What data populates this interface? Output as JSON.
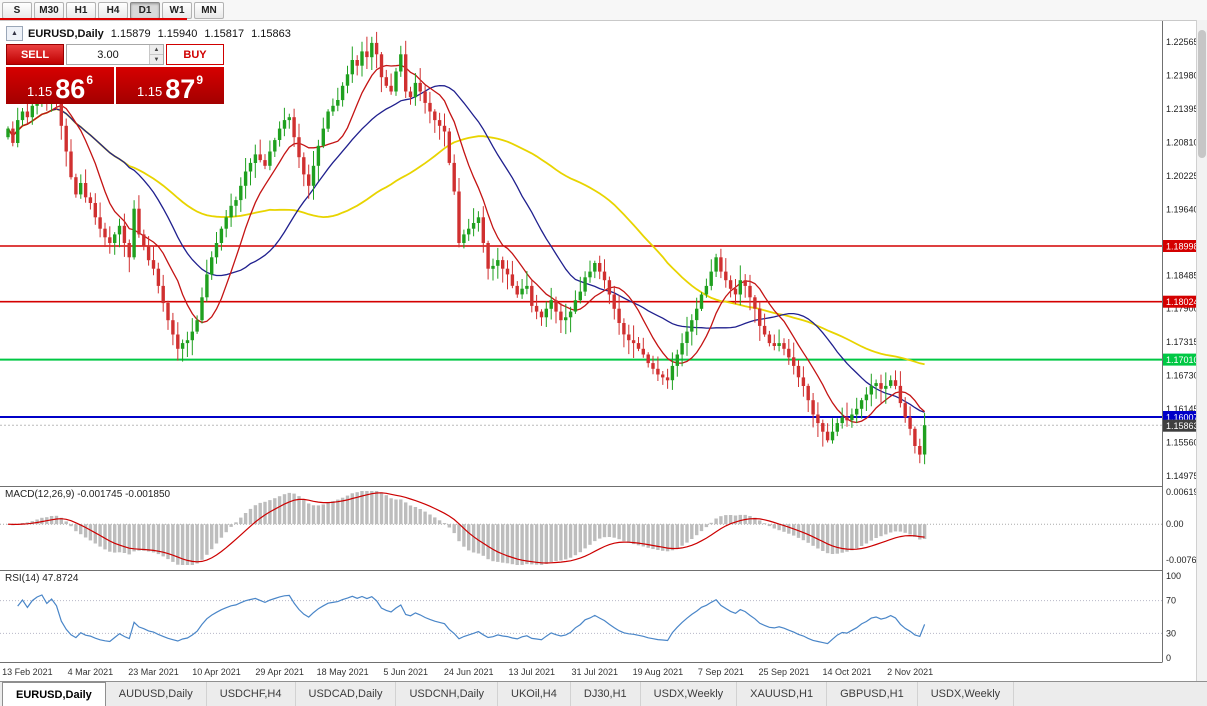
{
  "toolbar": {
    "timeframes": [
      {
        "label": "S",
        "active": false
      },
      {
        "label": "M30",
        "active": false
      },
      {
        "label": "H1",
        "active": false
      },
      {
        "label": "H4",
        "active": false
      },
      {
        "label": "D1",
        "active": true
      },
      {
        "label": "W1",
        "active": false
      },
      {
        "label": "MN",
        "active": false
      }
    ]
  },
  "chart_header": {
    "collapse_icon": "▲",
    "symbol": "EURUSD,Daily",
    "open": "1.15879",
    "high": "1.15940",
    "low": "1.15817",
    "close": "1.15863"
  },
  "trade_panel": {
    "sell_label": "SELL",
    "buy_label": "BUY",
    "volume": "3.00",
    "spin_up": "▲",
    "spin_down": "▼",
    "sell_price": {
      "base": "1.15",
      "pips": "86",
      "pt": "6"
    },
    "buy_price": {
      "base": "1.15",
      "pips": "87",
      "pt": "9"
    }
  },
  "indicators": {
    "macd_label": "MACD(12,26,9) -0.001745 -0.001850",
    "rsi_label": "RSI(14) 47.8724"
  },
  "price_axis": {
    "ticks": [
      "1.22565",
      "1.21980",
      "1.21395",
      "1.20810",
      "1.20225",
      "1.19640",
      "1.18485",
      "1.17900",
      "1.17315",
      "1.16730",
      "1.16145",
      "1.15560",
      "1.14975"
    ]
  },
  "macd_axis": [
    "0.006193",
    "0.00",
    "-0.007621"
  ],
  "rsi_axis": [
    "100",
    "70",
    "30",
    "0"
  ],
  "date_axis": [
    "13 Feb 2021",
    "4 Mar 2021",
    "23 Mar 2021",
    "10 Apr 2021",
    "29 Apr 2021",
    "18 May 2021",
    "5 Jun 2021",
    "24 Jun 2021",
    "13 Jul 2021",
    "31 Jul 2021",
    "19 Aug 2021",
    "7 Sep 2021",
    "25 Sep 2021",
    "14 Oct 2021",
    "2 Nov 2021"
  ],
  "tabs": [
    {
      "label": "EURUSD,Daily",
      "active": true
    },
    {
      "label": "AUDUSD,Daily",
      "active": false
    },
    {
      "label": "USDCHF,H4",
      "active": false
    },
    {
      "label": "USDCAD,Daily",
      "active": false
    },
    {
      "label": "USDCNH,Daily",
      "active": false
    },
    {
      "label": "UKOil,H4",
      "active": false
    },
    {
      "label": "DJ30,H1",
      "active": false
    },
    {
      "label": "USDX,Weekly",
      "active": false
    },
    {
      "label": "XAUUSD,H1",
      "active": false
    },
    {
      "label": "GBPUSD,H1",
      "active": false
    },
    {
      "label": "USDX,Weekly",
      "active": false
    }
  ],
  "chart_data": {
    "type": "candlestick",
    "symbol": "EURUSD",
    "timeframe": "Daily",
    "title": "EURUSD,Daily",
    "price_range": {
      "max": 1.2295,
      "min": 1.148
    },
    "closes": [
      1.2105,
      1.208,
      1.212,
      1.2135,
      1.2125,
      1.2145,
      1.216,
      1.217,
      1.2155,
      1.2175,
      1.216,
      1.211,
      1.2065,
      1.202,
      1.199,
      1.201,
      1.1985,
      1.1975,
      1.195,
      1.193,
      1.1915,
      1.1905,
      1.192,
      1.1935,
      1.1905,
      1.188,
      1.1965,
      1.192,
      1.19,
      1.1875,
      1.186,
      1.183,
      1.18,
      1.177,
      1.1745,
      1.172,
      1.173,
      1.1735,
      1.175,
      1.177,
      1.181,
      1.185,
      1.188,
      1.1905,
      1.193,
      1.195,
      1.197,
      1.198,
      1.2005,
      1.203,
      1.2045,
      1.206,
      1.205,
      1.204,
      1.2065,
      1.2085,
      1.2105,
      1.212,
      1.2125,
      1.209,
      1.2055,
      1.2025,
      1.2005,
      1.204,
      1.2075,
      1.2105,
      1.2135,
      1.2145,
      1.2155,
      1.218,
      1.22,
      1.2225,
      1.2215,
      1.224,
      1.223,
      1.2255,
      1.2235,
      1.2195,
      1.218,
      1.217,
      1.2205,
      1.2235,
      1.217,
      1.216,
      1.2185,
      1.217,
      1.215,
      1.2135,
      1.212,
      1.211,
      1.21,
      1.2045,
      1.1995,
      1.1905,
      1.192,
      1.193,
      1.194,
      1.195,
      1.1905,
      1.186,
      1.1865,
      1.1875,
      1.186,
      1.185,
      1.183,
      1.1815,
      1.1825,
      1.183,
      1.1795,
      1.1785,
      1.1775,
      1.179,
      1.1805,
      1.1785,
      1.177,
      1.1775,
      1.1785,
      1.1805,
      1.182,
      1.1845,
      1.1855,
      1.187,
      1.1855,
      1.184,
      1.1815,
      1.179,
      1.1765,
      1.1745,
      1.1735,
      1.173,
      1.172,
      1.171,
      1.1695,
      1.1685,
      1.1675,
      1.167,
      1.1665,
      1.169,
      1.171,
      1.173,
      1.175,
      1.177,
      1.179,
      1.1815,
      1.183,
      1.1855,
      1.188,
      1.1855,
      1.184,
      1.1825,
      1.1815,
      1.184,
      1.183,
      1.181,
      1.179,
      1.176,
      1.1745,
      1.173,
      1.1725,
      1.173,
      1.172,
      1.1705,
      1.169,
      1.167,
      1.1655,
      1.163,
      1.1605,
      1.159,
      1.1575,
      1.156,
      1.1575,
      1.159,
      1.16,
      1.1595,
      1.1605,
      1.1615,
      1.163,
      1.164,
      1.1655,
      1.166,
      1.165,
      1.1655,
      1.1665,
      1.1655,
      1.1625,
      1.16,
      1.158,
      1.155,
      1.1535,
      1.15863
    ],
    "date_label_indices": [
      4,
      17,
      30,
      43,
      56,
      69,
      82,
      95,
      108,
      121,
      134,
      147,
      160,
      173,
      186
    ],
    "levels": [
      {
        "price": 1.18998,
        "label": "1.18998",
        "color": "#d40000"
      },
      {
        "price": 1.18024,
        "label": "1.18024",
        "color": "#d40000"
      },
      {
        "price": 1.1701,
        "label": "1.17010",
        "color": "#00c844"
      },
      {
        "price": 1.16007,
        "label": "1.16007",
        "color": "#0000c8"
      }
    ],
    "current_price": {
      "price": 1.15863,
      "label": "1.15863",
      "badge_color": "#3f3f3f"
    },
    "moving_averages": [
      {
        "period": 10,
        "color": "#c41414"
      },
      {
        "period": 25,
        "color": "#20208e"
      },
      {
        "period": 55,
        "color": "#e8d400"
      }
    ],
    "macd": {
      "fast": 12,
      "slow": 26,
      "signal": 9,
      "main_value": -0.001745,
      "signal_value": -0.00185,
      "hist_color": "#bdbdbd",
      "signal_color": "#cc0000",
      "range": {
        "max": 0.006193,
        "min": -0.007621
      }
    },
    "rsi": {
      "period": 14,
      "value": 47.8724,
      "color": "#4a86c8",
      "levels": [
        70,
        30
      ]
    },
    "candle_colors": {
      "up": "#1fa01f",
      "down": "#d03030"
    }
  }
}
